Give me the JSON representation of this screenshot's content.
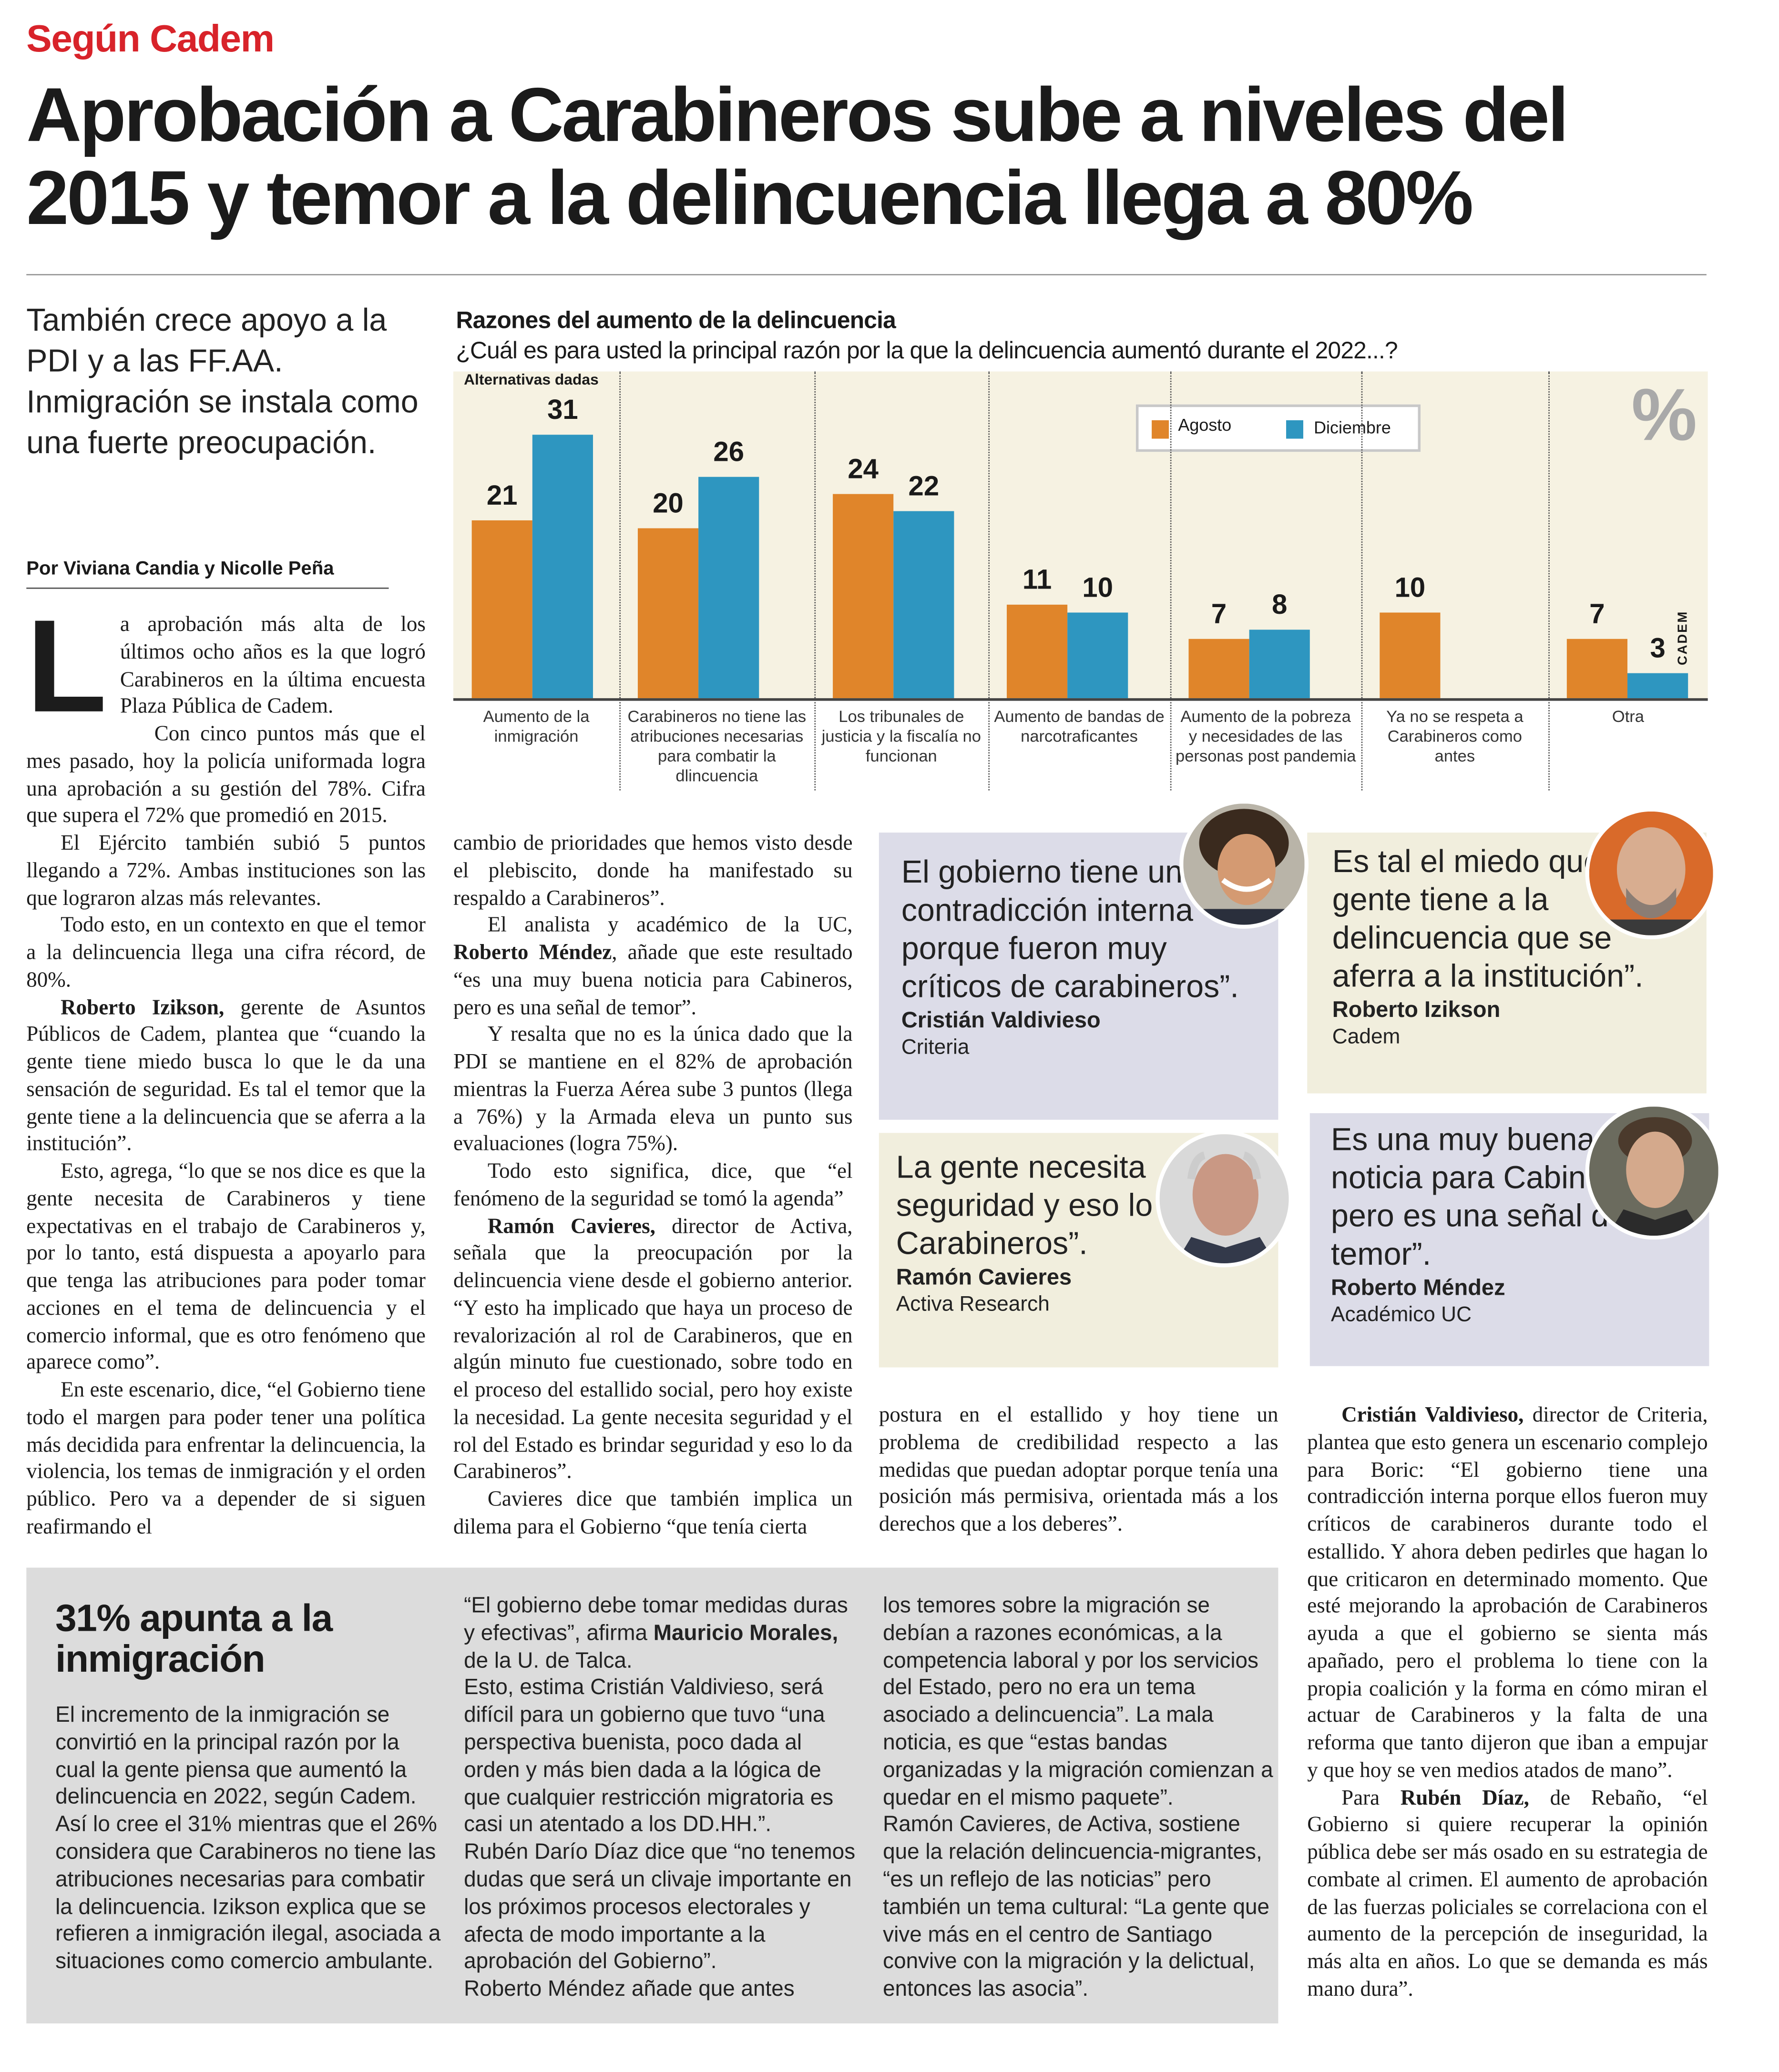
{
  "kicker": "Según Cadem",
  "headline": "Aprobación a Carabineros sube a niveles del 2015 y temor a la delincuencia llega a 80%",
  "deck": "También crece apoyo a la PDI y a las FF.AA. Inmigración se instala como una fuerte preocupación.",
  "byline": "Por Viviana Candia y Nicolle Peña",
  "colors": {
    "kicker": "#d8232a",
    "agosto": "#e0852a",
    "diciembre": "#2e96c0",
    "chart_bg": "#f6f2e2",
    "quote_lavender": "#dcdce8",
    "quote_beige": "#f1eedd",
    "box_gray": "#dcdcdc"
  },
  "chart_data": {
    "type": "bar",
    "title": "Razones del aumento de la delincuencia",
    "subtitle": "¿Cuál es para usted la principal razón por la que la delincuencia aumentó durante el 2022...?",
    "note": "Alternativas dadas",
    "unit_label": "%",
    "source": "CADEM",
    "legend_position": "top-right",
    "categories": [
      "Aumento de la inmigración",
      "Carabineros no tiene las atribuciones necesarias para combatir la dlincuencia",
      "Los tribunales de justicia y la fiscalía no funcionan",
      "Aumento de bandas de narcotraficantes",
      "Aumento de la pobreza y necesidades de las personas post pandemia",
      "Ya no se respeta a Carabineros como antes",
      "Otra"
    ],
    "series": [
      {
        "name": "Agosto",
        "values": [
          21,
          20,
          24,
          11,
          7,
          10,
          7
        ]
      },
      {
        "name": "Diciembre",
        "values": [
          31,
          26,
          22,
          10,
          8,
          null,
          3
        ]
      }
    ],
    "ylim": [
      0,
      31
    ]
  },
  "body": {
    "col1": [
      [
        {
          "t": "a aprobación más alta de los últimos ocho años es la que logró Carabineros en la última encuesta Plaza Pública de Cadem."
        }
      ],
      [
        {
          "t": "Con cinco puntos más que el mes pasado, hoy la policía uniformada logra una aprobación a su gestión del 78%. Cifra que supera el 72% que promedió en 2015."
        }
      ],
      [
        {
          "t": "El Ejército también subió 5 puntos llegando a 72%. Ambas instituciones son las que lograron alzas más relevantes."
        }
      ],
      [
        {
          "t": "Todo esto, en un contexto en que el temor a la delincuencia llega una cifra récord, de 80%."
        }
      ],
      [
        {
          "b": "Roberto Izikson,"
        },
        {
          "t": " gerente de Asuntos Públicos de Cadem, plantea que “cuando la gente tiene miedo busca lo que le da una sensación de seguridad. Es tal el temor que la gente tiene a la delincuencia que se aferra a la institución”."
        }
      ],
      [
        {
          "t": "Esto, agrega, “lo que se nos dice es que la gente necesita de Carabineros y tiene expectativas en el trabajo de Carabineros y, por lo tanto, está dispuesta a apoyarlo para que tenga las atribuciones para poder tomar acciones en el tema de delincuencia y el comercio informal, que es otro fenómeno que aparece como”."
        }
      ],
      [
        {
          "t": "En este escenario, dice, “el Gobierno tiene todo el margen para poder tener una política más decidida para enfrentar la delincuencia, la violencia, los temas de inmigración y el orden público. Pero va a depender de si siguen reafirmando el"
        }
      ]
    ],
    "drop_cap": "L",
    "col2": [
      [
        {
          "t": "cambio de prioridades que hemos visto desde el plebiscito, donde ha manifestado su respaldo a Carabineros”."
        }
      ],
      [
        {
          "t": "El analista y académico de la UC, "
        },
        {
          "b": "Roberto Méndez"
        },
        {
          "t": ", añade que este resultado “es una muy buena noticia para Cabineros, pero es una señal de temor”."
        }
      ],
      [
        {
          "t": "Y resalta que no es la única dado que la PDI se mantiene en el 82% de aprobación mientras la Fuerza Aérea sube 3 puntos (llega a 76%) y la Armada eleva un punto sus evaluaciones (logra 75%)."
        }
      ],
      [
        {
          "t": "Todo esto significa, dice, que “el fenómeno de la seguridad se tomó la agenda”"
        }
      ],
      [
        {
          "b": "Ramón Cavieres,"
        },
        {
          "t": " director de Activa, señala que la preocupación por la delincuencia viene desde el gobierno anterior. “Y esto ha implicado que haya un proceso de revalorización al rol de Carabineros, que en algún minuto fue cuestionado, sobre todo en el proceso del estallido social, pero hoy existe la necesidad. La gente necesita seguridad y el rol del Estado es brindar seguridad y eso lo da Carabineros”."
        }
      ],
      [
        {
          "t": "Cavieres dice que también implica un dilema para el Gobierno “que tenía cierta"
        }
      ]
    ],
    "col3": [
      [
        {
          "t": "postura en el estallido y hoy tiene un problema de credibilidad respecto a las medidas que puedan adoptar porque tenía una posición más permisiva, orientada más a los derechos que a los deberes”."
        }
      ]
    ],
    "col4": [
      [
        {
          "b": "Cristián Valdivieso,"
        },
        {
          "t": " director de Criteria, plantea que esto genera un escenario complejo para Boric: “El gobierno tiene una contradicción interna porque ellos fueron muy críticos de carabineros durante todo el estallido. Y ahora deben pedirles que hagan lo que criticaron en determinado momento. Que esté mejorando la aprobación de Carabineros ayuda a que el gobierno se sienta más apañado, pero el problema lo tiene con la propia coalición y la forma en cómo miran el actuar de Carabineros y la falta de una reforma que tanto dijeron que iban a empujar y que hoy se ven medios atados de mano”."
        }
      ],
      [
        {
          "t": "Para "
        },
        {
          "b": "Rubén Díaz,"
        },
        {
          "t": " de Rebaño, “el Gobierno si quiere recuperar la opinión pública debe ser más osado en su estrategia de combate al crimen. El aumento de aprobación de las fuerzas policiales se correlaciona con el aumento de la percepción de inseguridad, la más alta en años. Lo que se demanda es más mano dura”."
        }
      ]
    ]
  },
  "quotes": [
    {
      "text": "El gobierno tiene una contradicción interna porque fueron muy críticos de carabineros”.",
      "name": "Cristián Valdivieso",
      "role": "Criteria"
    },
    {
      "text": "Es tal el miedo que la gente tiene a la delincuencia que se aferra a la institución”.",
      "name": "Roberto Izikson",
      "role": "Cadem"
    },
    {
      "text": "La gente necesita seguridad y eso lo da Carabineros”.",
      "name": "Ramón Cavieres",
      "role": "Activa Research"
    },
    {
      "text": "Es una muy buena noticia para Cabineros, pero es una señal de temor”.",
      "name": "Roberto Méndez",
      "role": "Académico UC"
    }
  ],
  "sidebar": {
    "heading": "31% apunta a la inmigración",
    "col1": [
      [
        {
          "t": "El incremento de la inmigración se convirtió en la principal razón por la cual la gente piensa que aumentó la delincuencia en 2022, según Cadem. Así lo cree el 31% mientras que el 26% considera que Carabineros no tiene las atribuciones necesarias para combatir la delincuencia. Izikson explica que se refieren a inmigración ilegal, asociada a situaciones como comercio ambulante."
        }
      ]
    ],
    "col2": [
      [
        {
          "t": "“El gobierno debe tomar medidas duras y efectivas”, afirma "
        },
        {
          "b": "Mauricio Morales,"
        },
        {
          "t": " de la U. de Talca."
        }
      ],
      [
        {
          "t": "Esto, estima Cristián Valdivieso, será difícil para un gobierno que tuvo “una perspectiva buenista, poco dada al orden y más bien dada a la lógica de que cualquier restricción migratoria es casi un atentado a los DD.HH.”."
        }
      ],
      [
        {
          "t": "Rubén Darío Díaz dice que “no tenemos dudas que será un clivaje importante en los próximos procesos electorales y afecta de modo importante a la aprobación del Gobierno”."
        }
      ],
      [
        {
          "t": "Roberto Méndez añade que antes"
        }
      ]
    ],
    "col3": [
      [
        {
          "t": "los temores sobre la migración se debían a razones económicas, a la competencia laboral y por los servicios del Estado, pero no era un tema asociado a delincuencia”. La mala noticia, es que “estas bandas organizadas y la migración comienzan a quedar en el mismo paquete”."
        }
      ],
      [
        {
          "t": "Ramón Cavieres, de Activa, sostiene que la relación delincuencia-migrantes, “es un reflejo de las noticias” pero también un tema cultural: “La gente que vive más en el centro de Santiago convive con la migración y la delictual, entonces las asocia”."
        }
      ]
    ]
  }
}
